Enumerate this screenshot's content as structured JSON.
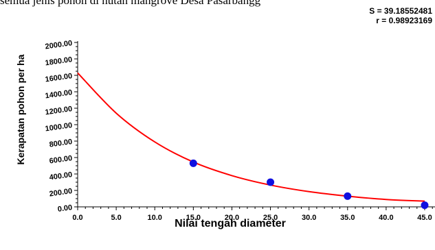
{
  "page": {
    "top_text": "semua jenis pohon di hutan mangrove Desa Pasarbangg"
  },
  "stats": {
    "s_line": "S = 39.18552481",
    "r_line": "r = 0.98923169"
  },
  "colors": {
    "curve": "#ff0000",
    "points": "#1010e0",
    "axis": "#000000"
  },
  "chart_data": {
    "type": "scatter",
    "title": "",
    "xlabel": "Nilai tengah diameter",
    "ylabel": "Kerapatan pohon per ha",
    "xlim": [
      0,
      45
    ],
    "ylim": [
      0,
      2000
    ],
    "x_ticks": [
      "0.0",
      "5.0",
      "10.0",
      "15.0",
      "20.0",
      "25.0",
      "30.0",
      "35.0",
      "40.0",
      "45.0"
    ],
    "y_ticks": [
      "0.00",
      "200.00",
      "400.00",
      "600.00",
      "800.00",
      "1000.00",
      "1200.00",
      "1400.00",
      "1600.00",
      "1800.00",
      "2000.00"
    ],
    "grid": false,
    "series": [
      {
        "kind": "points",
        "x": [
          15,
          25,
          35,
          45
        ],
        "y": [
          530,
          300,
          130,
          20
        ]
      },
      {
        "kind": "fitted-curve",
        "x": [
          0,
          5,
          10,
          15,
          20,
          25,
          30,
          35,
          40,
          45
        ],
        "y": [
          1630,
          1140,
          790,
          545,
          380,
          265,
          185,
          130,
          90,
          70
        ]
      }
    ]
  }
}
